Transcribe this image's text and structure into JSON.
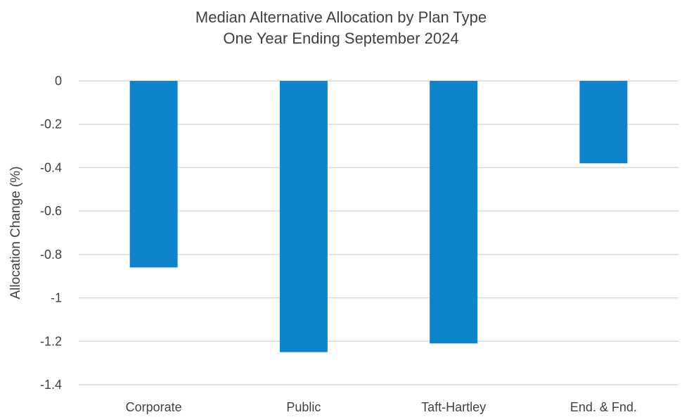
{
  "chart_data": {
    "type": "bar",
    "title": "Median Alternative Allocation by Plan Type",
    "subtitle": "One Year Ending September 2024",
    "xlabel": "",
    "ylabel": "Allocation Change (%)",
    "categories": [
      "Corporate",
      "Public",
      "Taft-Hartley",
      "End. & Fnd."
    ],
    "values": [
      -0.86,
      -1.25,
      -1.21,
      -0.38
    ],
    "ylim": [
      -1.4,
      0
    ],
    "yticks": [
      0,
      -0.2,
      -0.4,
      -0.6,
      -0.8,
      -1,
      -1.2,
      -1.4
    ],
    "ytick_labels": [
      "0",
      "-0.2",
      "-0.4",
      "-0.6",
      "-0.8",
      "-1",
      "-1.2",
      "-1.4"
    ],
    "grid": true,
    "legend": "none",
    "bar_color": "#0d84cc",
    "grid_color": "#d9d9d9"
  }
}
